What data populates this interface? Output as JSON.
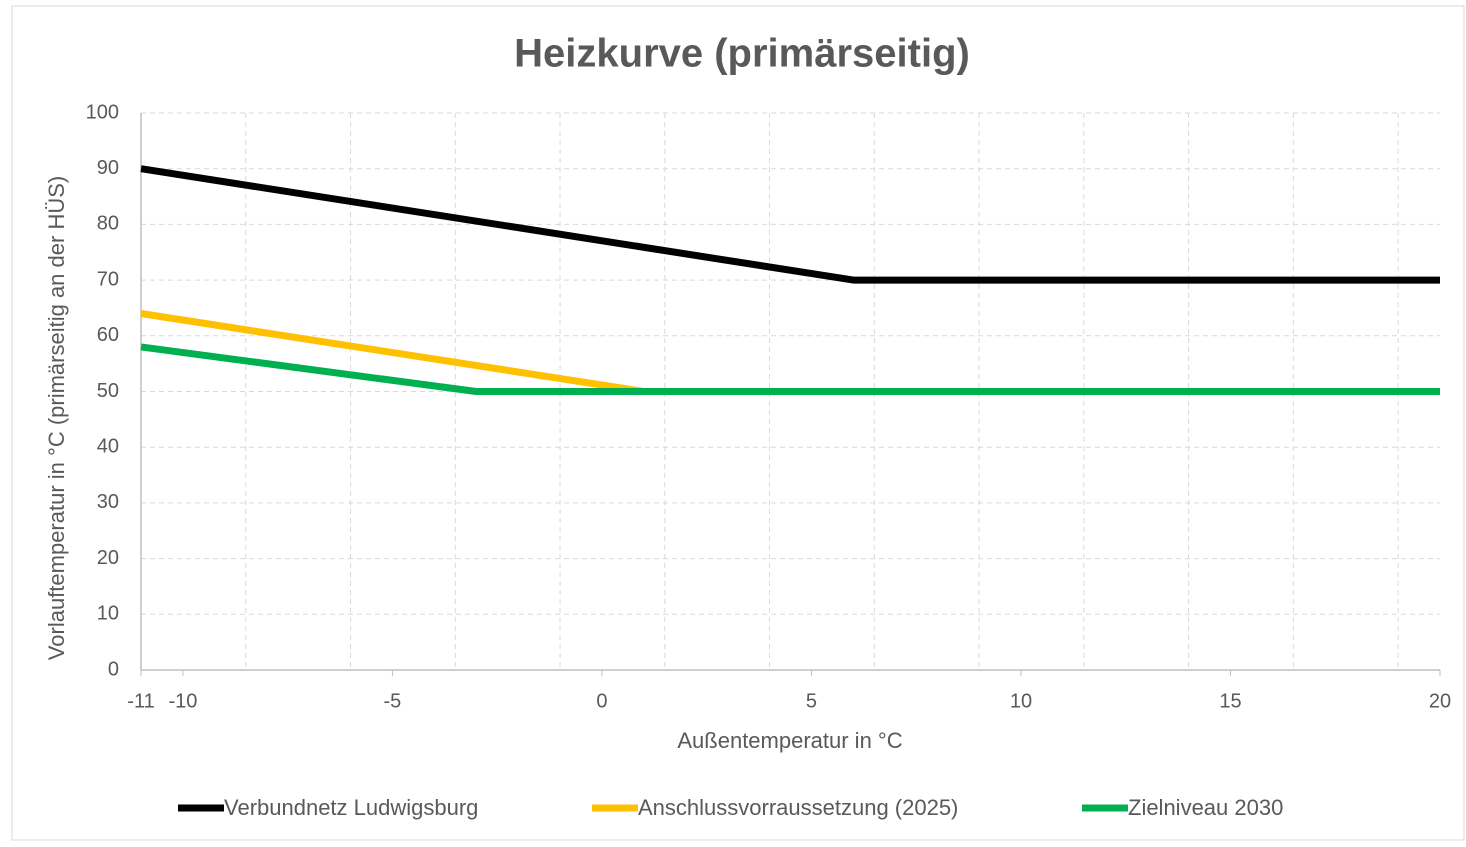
{
  "chart_data": {
    "type": "line",
    "title": "Heizkurve (primärseitig)",
    "x_label": "Außentemperatur in °C",
    "y_label": "Vorlauftemperatur in °C (primärseitig an der HÜS)",
    "xlim": [
      -11,
      20
    ],
    "xticks": [
      -11,
      -10,
      -5,
      0,
      5,
      10,
      15,
      20
    ],
    "xgrid": [
      -11,
      -8.5,
      -6,
      -3.5,
      -1,
      1.5,
      4,
      6.5,
      9,
      11.5,
      14,
      16.5,
      19
    ],
    "ylim": [
      0,
      100
    ],
    "yticks": [
      0,
      10,
      20,
      30,
      40,
      50,
      60,
      70,
      80,
      90,
      100
    ],
    "grid": true,
    "legend": "bottom",
    "series": [
      {
        "name": "Verbundnetz Ludwigsburg",
        "color": "#000000",
        "x": [
          -11,
          6,
          20
        ],
        "values": [
          90,
          70,
          70
        ]
      },
      {
        "name": "Anschlussvorraussetzung (2025)",
        "color": "#ffc000",
        "x": [
          -11,
          1,
          20
        ],
        "values": [
          64,
          50,
          50
        ]
      },
      {
        "name": "Zielniveau 2030",
        "color": "#00b050",
        "x": [
          -11,
          -3,
          20
        ],
        "values": [
          58,
          50,
          50
        ]
      }
    ]
  }
}
